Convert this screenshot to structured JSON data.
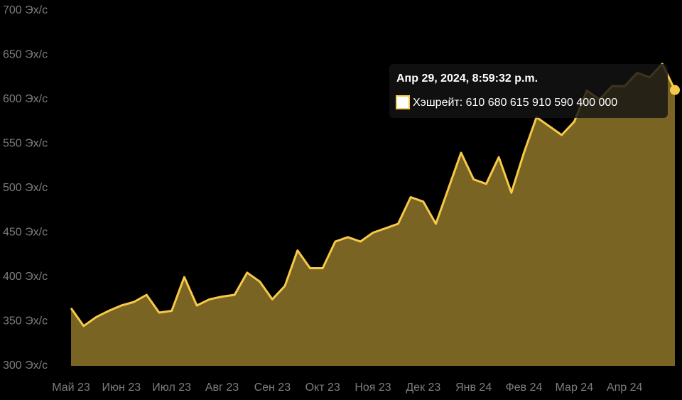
{
  "chart_data": {
    "type": "area",
    "color": "#f7c948",
    "fill": "#7a6424",
    "categories": [
      "Май 23",
      null,
      null,
      null,
      "Июн 23",
      null,
      null,
      null,
      "Июл 23",
      null,
      null,
      null,
      "Авг 23",
      null,
      null,
      null,
      "Сен 23",
      null,
      null,
      null,
      "Окт 23",
      null,
      null,
      null,
      "Ноя 23",
      null,
      null,
      null,
      "Дек 23",
      null,
      null,
      null,
      "Янв 24",
      null,
      null,
      null,
      "Фев 24",
      null,
      null,
      null,
      "Мар 24",
      null,
      null,
      null,
      "Апр 24",
      null,
      null,
      null,
      null
    ],
    "values": [
      365,
      345,
      355,
      362,
      368,
      372,
      380,
      360,
      362,
      400,
      368,
      375,
      378,
      380,
      405,
      395,
      375,
      390,
      430,
      410,
      410,
      440,
      445,
      440,
      450,
      455,
      460,
      490,
      485,
      460,
      500,
      540,
      510,
      505,
      535,
      495,
      540,
      580,
      570,
      560,
      575,
      610,
      600,
      615,
      615,
      630,
      625,
      640,
      610.68
    ],
    "ylim": [
      300,
      700
    ],
    "yticks": [
      {
        "value": 300,
        "label": "300 Эх/с"
      },
      {
        "value": 350,
        "label": "350 Эх/с"
      },
      {
        "value": 400,
        "label": "400 Эх/с"
      },
      {
        "value": 450,
        "label": "450 Эх/с"
      },
      {
        "value": 500,
        "label": "500 Эх/с"
      },
      {
        "value": 550,
        "label": "550 Эх/с"
      },
      {
        "value": 600,
        "label": "600 Эх/с"
      },
      {
        "value": 650,
        "label": "650 Эх/с"
      },
      {
        "value": 700,
        "label": "700 Эх/с"
      }
    ],
    "tooltip": {
      "title": "Апр 29, 2024, 8:59:32 p.m.",
      "label": "Хэшрейт: 610 680 615 910 590 400 000"
    }
  }
}
